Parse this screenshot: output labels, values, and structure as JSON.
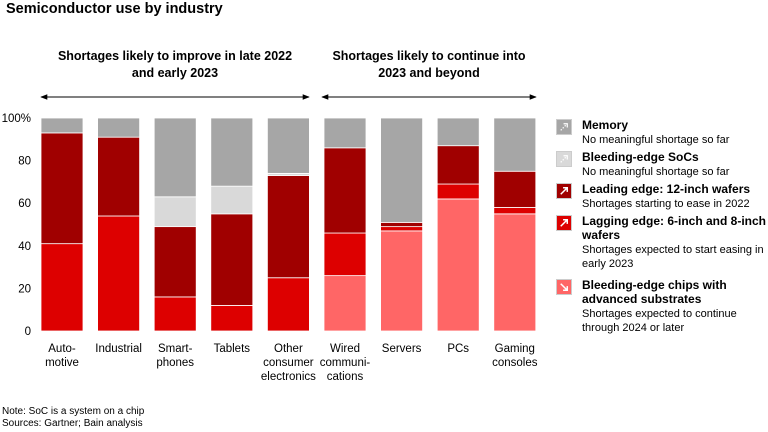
{
  "title": "Semiconductor use by industry",
  "group_headers": [
    {
      "text": "Shortages likely to improve in late 2022 and early 2023"
    },
    {
      "text": "Shortages likely to continue into 2023 and beyond"
    }
  ],
  "legend": [
    {
      "label": "Memory",
      "note": "No meaningful shortage so far",
      "color": "#a6a6a6",
      "icon": "dashed-arrow-icon"
    },
    {
      "label": "Bleeding-edge SoCs",
      "note": "No meaningful shortage so far",
      "color": "#d9d9d9",
      "icon": "dashed-arrow-icon"
    },
    {
      "label": "Leading edge: 12-inch wafers",
      "note": "Shortages starting to ease in 2022",
      "color": "#a00000",
      "icon": "arrow-up-right-icon"
    },
    {
      "label": "Lagging edge: 6-inch and 8-inch wafers",
      "note": "Shortages expected to start easing in early 2023",
      "color": "#dd0000",
      "icon": "arrow-up-right-icon"
    },
    {
      "label": "Bleeding-edge chips with advanced substrates",
      "note": "Shortages expected to continue through 2024 or later",
      "color": "#ff6666",
      "icon": "arrow-down-right-icon"
    }
  ],
  "footnotes": [
    "Note: SoC is a system on a chip",
    "Sources: Gartner; Bain analysis"
  ],
  "chart_data": {
    "type": "bar",
    "stacked": true,
    "title": "Semiconductor use by industry",
    "ylim": [
      0,
      100
    ],
    "yticks": [
      "0",
      "20",
      "40",
      "60",
      "80",
      "100%"
    ],
    "categories": [
      "Auto-\nmotive",
      "Industrial",
      "Smart-\nphones",
      "Tablets",
      "Other\nconsumer\nelectronics",
      "Wired\ncommuni-\ncations",
      "Servers",
      "PCs",
      "Gaming\nconsoles"
    ],
    "series": [
      {
        "name": "Bleeding-edge chips with advanced substrates",
        "color": "#ff6666",
        "values": [
          0,
          0,
          0,
          0,
          0,
          26,
          47,
          62,
          55
        ]
      },
      {
        "name": "Lagging edge: 6-inch and 8-inch wafers",
        "color": "#dd0000",
        "values": [
          41,
          54,
          16,
          12,
          25,
          20,
          2,
          7,
          3
        ]
      },
      {
        "name": "Leading edge: 12-inch wafers",
        "color": "#a00000",
        "values": [
          52,
          37,
          33,
          43,
          48,
          40,
          2,
          18,
          17
        ]
      },
      {
        "name": "Bleeding-edge SoCs",
        "color": "#d9d9d9",
        "values": [
          0,
          0,
          14,
          13,
          1,
          0,
          0,
          0,
          0
        ]
      },
      {
        "name": "Memory",
        "color": "#a6a6a6",
        "values": [
          7,
          9,
          37,
          32,
          26,
          14,
          49,
          13,
          25
        ]
      }
    ]
  }
}
